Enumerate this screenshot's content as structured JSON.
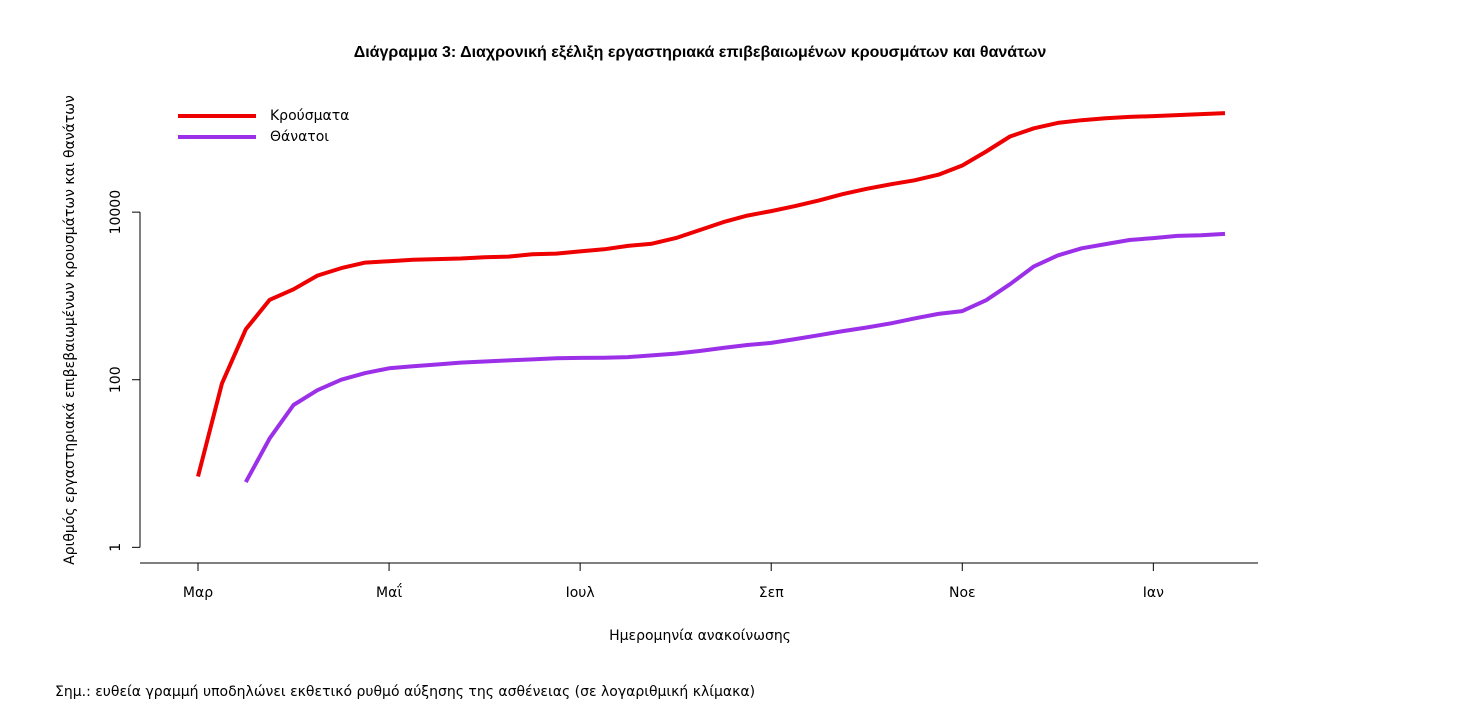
{
  "chart_data": {
    "type": "line",
    "title": "Διάγραμμα 3: Διαχρονική εξέλιξη εργαστηριακά επιβεβαιωμένων κρουσμάτων και θανάτων",
    "x_label": "Ημερομηνία ανακοίνωσης",
    "y_label": "Αριθμός εργαστηριακά επιβεβαιωμένων κρουσμάτων και θανάτων",
    "note": "Σημ.: ευθεία γραμμή υποδηλώνει εκθετικό ρυθμό αύξησης της ασθένειας (σε λογαριθμική κλίμακα)",
    "categories": [
      "Μαρ",
      null,
      null,
      null,
      null,
      null,
      null,
      null,
      "Μαΐ",
      null,
      null,
      null,
      null,
      null,
      null,
      null,
      "Ιουλ",
      null,
      null,
      null,
      null,
      null,
      null,
      null,
      "Σεπ",
      null,
      null,
      null,
      null,
      null,
      null,
      null,
      "Νοε",
      null,
      null,
      null,
      null,
      null,
      null,
      null,
      "Ιαν",
      null,
      null,
      null
    ],
    "series": [
      {
        "name": "Κρούσματα",
        "color": "#ee0000",
        "values": [
          7,
          90,
          400,
          900,
          1200,
          1750,
          2150,
          2500,
          2600,
          2700,
          2750,
          2800,
          2900,
          2950,
          3150,
          3200,
          3400,
          3600,
          3950,
          4200,
          4900,
          6100,
          7600,
          9100,
          10300,
          11800,
          13800,
          16400,
          19000,
          21500,
          24000,
          28000,
          36000,
          53000,
          80000,
          100000,
          116000,
          125000,
          132000,
          137000,
          140000,
          144000,
          148000,
          152000
        ]
      },
      {
        "name": "Θάνατοι",
        "color": "#9b30e8",
        "values": [
          null,
          null,
          6,
          20,
          50,
          75,
          100,
          120,
          137,
          145,
          152,
          160,
          165,
          170,
          175,
          180,
          182,
          183,
          186,
          195,
          205,
          220,
          240,
          260,
          275,
          305,
          340,
          380,
          420,
          470,
          540,
          610,
          660,
          890,
          1380,
          2250,
          3050,
          3700,
          4150,
          4650,
          4900,
          5200,
          5300,
          5500
        ]
      }
    ],
    "log_y": true,
    "ylim": [
      0.65,
      250000
    ],
    "yticks": [
      1,
      100,
      10000
    ],
    "legend": "top-left"
  }
}
